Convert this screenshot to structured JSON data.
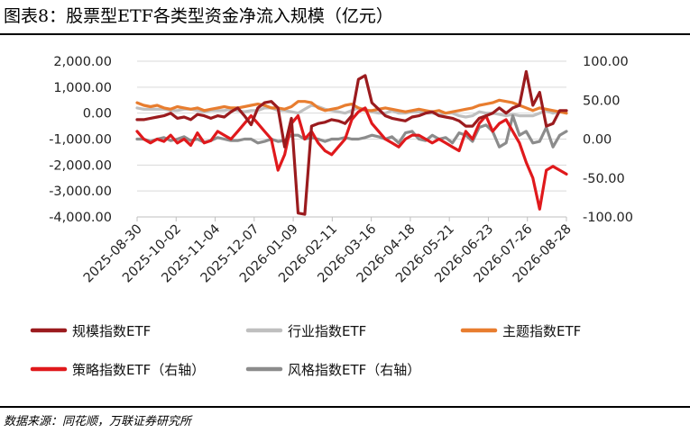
{
  "title": "图表8：股票型ETF各类型资金净流入规模（亿元）",
  "source": "数据来源：同花顺，万联证券研究所",
  "chart_data": {
    "type": "line",
    "x_labels": [
      "2025-08-30",
      "2025-10-02",
      "2025-11-04",
      "2025-12-07",
      "2026-01-09",
      "2026-02-11",
      "2026-03-16",
      "2026-04-18",
      "2026-05-21",
      "2026-06-23",
      "2026-07-26",
      "2026-08-28"
    ],
    "y_left": {
      "ticks": [
        "2,000.00",
        "1,000.00",
        "0.00",
        "-1,000.00",
        "-2,000.00",
        "-3,000.00",
        "-4,000.00"
      ],
      "range": [
        -4000,
        2000
      ]
    },
    "y_right": {
      "ticks": [
        "100.00",
        "50.00",
        "0.00",
        "-50.00",
        "-100.00"
      ],
      "range": [
        -100,
        100
      ]
    },
    "series": [
      {
        "name": "规模指数ETF",
        "axis": "left",
        "color": "#9b1b1e",
        "values": [
          -250,
          -250,
          -200,
          -150,
          -100,
          0,
          -200,
          -150,
          -250,
          -50,
          -100,
          -200,
          -100,
          -150,
          50,
          200,
          -100,
          -450,
          200,
          400,
          450,
          200,
          -1300,
          -200,
          -3850,
          -3900,
          -500,
          -400,
          -350,
          -250,
          -300,
          -400,
          -100,
          1300,
          1450,
          400,
          150,
          -100,
          -200,
          -250,
          -300,
          -150,
          -100,
          0,
          50,
          -100,
          -150,
          -200,
          -300,
          -500,
          -500,
          -200,
          -100,
          0,
          200,
          0,
          200,
          300,
          1600,
          300,
          800,
          -500,
          -400,
          100,
          100
        ]
      },
      {
        "name": "行业指数ETF",
        "axis": "left",
        "color": "#bfbfbf",
        "values": [
          200,
          150,
          150,
          150,
          150,
          100,
          100,
          150,
          150,
          100,
          50,
          100,
          100,
          100,
          150,
          100,
          50,
          100,
          100,
          200,
          200,
          100,
          100,
          50,
          0,
          150,
          300,
          250,
          150,
          100,
          50,
          0,
          100,
          200,
          150,
          50,
          0,
          0,
          100,
          0,
          0,
          50,
          50,
          0,
          0,
          -50,
          0,
          0,
          -100,
          -150,
          -100,
          50,
          0,
          0,
          -50,
          -100,
          -50,
          -100,
          -100,
          -100,
          0,
          100,
          0,
          50,
          0
        ]
      },
      {
        "name": "主题指数ETF",
        "axis": "left",
        "color": "#e87d2f",
        "values": [
          400,
          300,
          250,
          300,
          200,
          150,
          250,
          200,
          150,
          200,
          100,
          150,
          200,
          250,
          200,
          200,
          250,
          300,
          350,
          300,
          200,
          200,
          150,
          250,
          450,
          450,
          400,
          200,
          100,
          150,
          200,
          300,
          350,
          200,
          100,
          100,
          150,
          200,
          150,
          100,
          50,
          100,
          150,
          100,
          50,
          100,
          0,
          50,
          100,
          150,
          200,
          300,
          350,
          400,
          500,
          450,
          400,
          300,
          200,
          100,
          200,
          150,
          100,
          50,
          0
        ]
      },
      {
        "name": "策略指数ETF（右轴）",
        "axis": "right",
        "color": "#e0191c",
        "values": [
          10,
          0,
          -5,
          0,
          -3,
          5,
          -5,
          0,
          -8,
          8,
          -5,
          -2,
          10,
          5,
          0,
          10,
          20,
          30,
          20,
          10,
          0,
          -40,
          -20,
          20,
          30,
          0,
          10,
          -5,
          -15,
          -20,
          -10,
          0,
          25,
          35,
          40,
          20,
          10,
          0,
          -5,
          -10,
          0,
          5,
          5,
          0,
          -5,
          0,
          -5,
          -10,
          -15,
          10,
          0,
          20,
          30,
          10,
          20,
          25,
          10,
          -5,
          -30,
          -50,
          -90,
          -40,
          -35,
          -40,
          -45
        ]
      },
      {
        "name": "风格指数ETF（右轴）",
        "axis": "right",
        "color": "#8c8c8c",
        "values": [
          0,
          0,
          -3,
          0,
          2,
          -2,
          0,
          3,
          -2,
          0,
          -4,
          -2,
          2,
          0,
          -2,
          -2,
          0,
          0,
          -5,
          -3,
          0,
          -3,
          -2,
          5,
          5,
          0,
          2,
          0,
          -3,
          0,
          0,
          2,
          0,
          0,
          2,
          5,
          3,
          0,
          3,
          -5,
          8,
          10,
          0,
          -2,
          5,
          0,
          2,
          -5,
          8,
          5,
          -3,
          15,
          18,
          10,
          -10,
          -5,
          30,
          5,
          10,
          -5,
          -3,
          15,
          -10,
          5,
          10
        ]
      }
    ],
    "legend": {
      "placement": "bottom"
    }
  }
}
